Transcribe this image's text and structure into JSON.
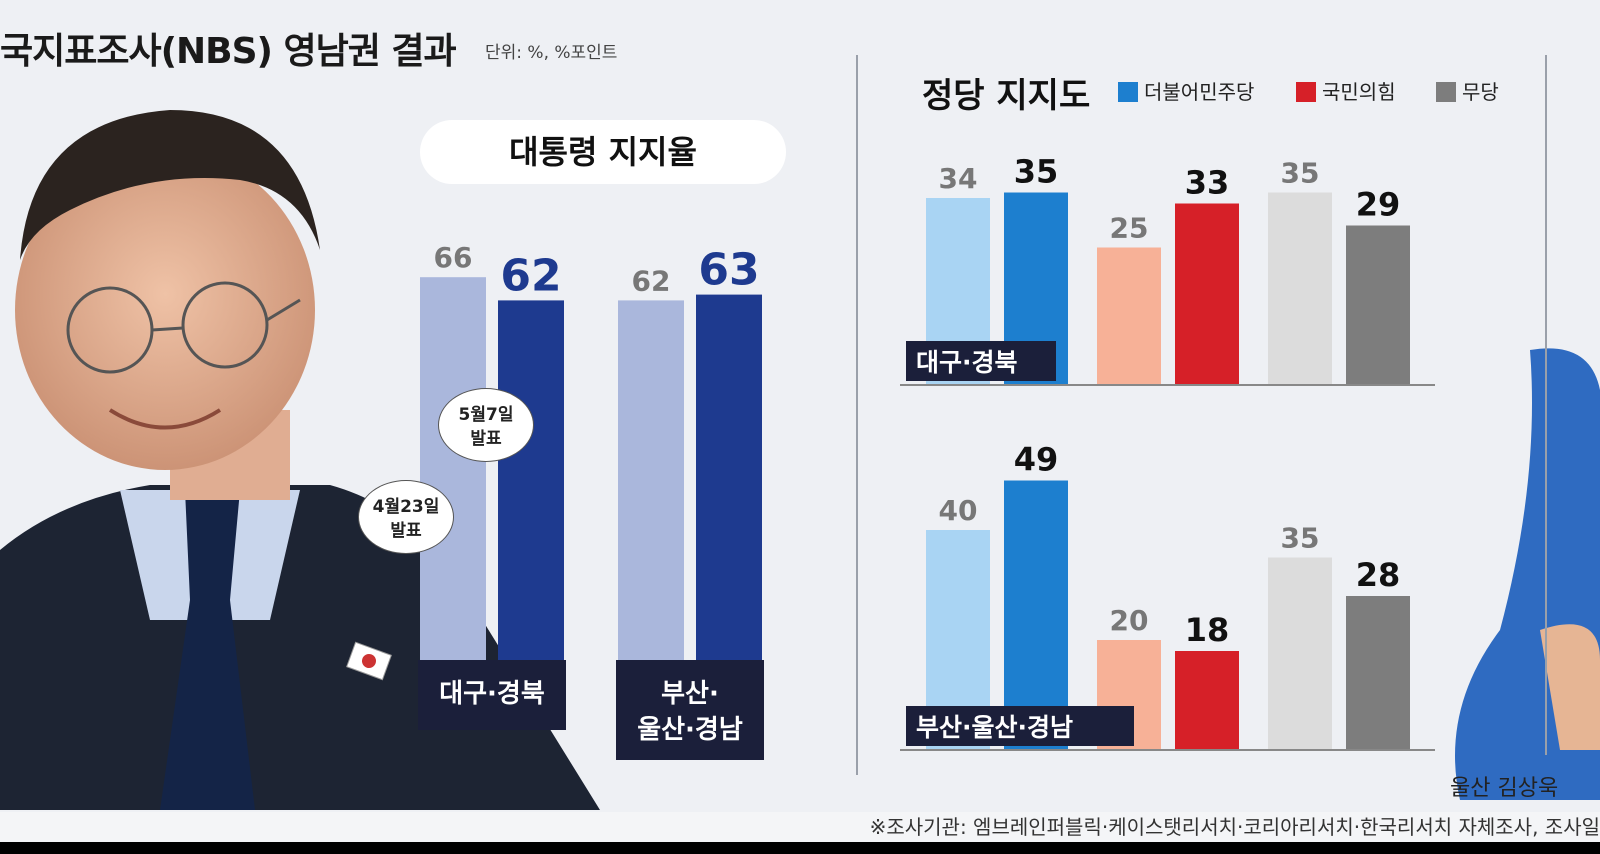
{
  "title": "국지표조사(NBS) 영남권 결과",
  "unit": "단위: %, %포인트",
  "colors": {
    "background": "#eef0f4",
    "pres_prev": "#aab7dc",
    "pres_curr": "#1e3a8f",
    "dem_prev": "#a9d4f3",
    "dem_curr": "#1d7fcf",
    "ppp_prev": "#f7b197",
    "ppp_curr": "#d62028",
    "ind_prev": "#dcdcdc",
    "ind_curr": "#7d7d7d",
    "label_box": "#1b1f3a"
  },
  "callouts": {
    "curr": [
      "5월7일",
      "발표"
    ],
    "prev": [
      "4월23일",
      "발표"
    ]
  },
  "credit": "울산 김상욱",
  "footer": "※조사기관: 엠브레인퍼블릭·케이스탯리서치·코리아리서치·한국리서치 자체조사, 조사일",
  "chart_data": [
    {
      "type": "bar",
      "title": "대통령 지지율",
      "categories": [
        "대구·경북",
        "부산·울산·경남"
      ],
      "category_display": [
        [
          "대구·경북"
        ],
        [
          "부산·",
          "울산·경남"
        ]
      ],
      "series": [
        {
          "name": "4월23일 발표",
          "values": [
            66,
            62
          ]
        },
        {
          "name": "5월7일 발표",
          "values": [
            62,
            63
          ]
        }
      ],
      "ylim": [
        0,
        70
      ]
    },
    {
      "type": "bar",
      "title": "정당 지지도",
      "legend": [
        "더불어민주당",
        "국민의힘",
        "무당"
      ],
      "legend_position": "top",
      "panels": [
        {
          "region": "대구·경북",
          "groups": [
            {
              "party": "더불어민주당",
              "prev": 34,
              "curr": 35
            },
            {
              "party": "국민의힘",
              "prev": 25,
              "curr": 33
            },
            {
              "party": "무당",
              "prev": 35,
              "curr": 29
            }
          ]
        },
        {
          "region": "부산·울산·경남",
          "groups": [
            {
              "party": "더불어민주당",
              "prev": 40,
              "curr": 49
            },
            {
              "party": "국민의힘",
              "prev": 20,
              "curr": 18
            },
            {
              "party": "무당",
              "prev": 35,
              "curr": 28
            }
          ]
        }
      ]
    }
  ]
}
